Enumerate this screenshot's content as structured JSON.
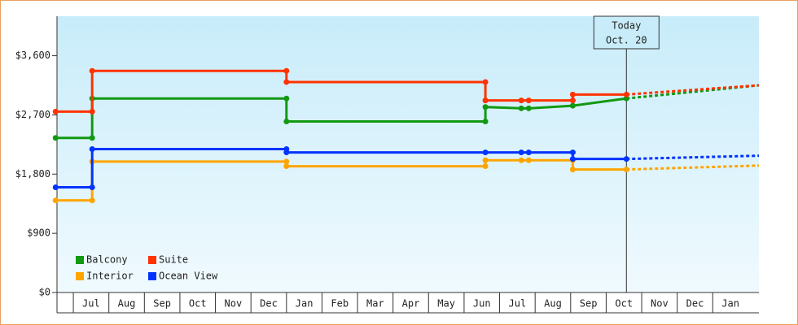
{
  "chart_data": {
    "type": "line",
    "xlim": [
      0.54,
      20.3
    ],
    "ylim": [
      0,
      4200
    ],
    "xticks": [
      {
        "value": 1.5,
        "label": "Jul"
      },
      {
        "value": 2.5,
        "label": "Aug"
      },
      {
        "value": 3.5,
        "label": "Sep"
      },
      {
        "value": 4.5,
        "label": "Oct"
      },
      {
        "value": 5.5,
        "label": "Nov"
      },
      {
        "value": 6.5,
        "label": "Dec"
      },
      {
        "value": 7.5,
        "label": "Jan"
      },
      {
        "value": 8.5,
        "label": "Feb"
      },
      {
        "value": 9.5,
        "label": "Mar"
      },
      {
        "value": 10.5,
        "label": "Apr"
      },
      {
        "value": 11.5,
        "label": "May"
      },
      {
        "value": 12.5,
        "label": "Jun"
      },
      {
        "value": 13.5,
        "label": "Jul"
      },
      {
        "value": 14.5,
        "label": "Aug"
      },
      {
        "value": 15.5,
        "label": "Sep"
      },
      {
        "value": 16.5,
        "label": "Oct"
      },
      {
        "value": 17.5,
        "label": "Nov"
      },
      {
        "value": 18.5,
        "label": "Dec"
      },
      {
        "value": 19.5,
        "label": "Jan"
      }
    ],
    "yticks": [
      {
        "value": 0,
        "label": "$0"
      },
      {
        "value": 900,
        "label": "$900"
      },
      {
        "value": 1800,
        "label": "$1,800"
      },
      {
        "value": 2700,
        "label": "$2,700"
      },
      {
        "value": 3600,
        "label": "$3,600"
      }
    ],
    "today": {
      "x": 16.57,
      "label": [
        "Today",
        "Oct. 20"
      ]
    },
    "series": [
      {
        "name": "Balcony",
        "color": "#119911",
        "x": [
          0.5,
          1.53,
          1.53,
          7.0,
          7.0,
          12.6,
          12.6,
          13.61,
          13.82,
          15.06,
          16.57
        ],
        "values": [
          2350,
          2350,
          2950,
          2950,
          2600,
          2600,
          2820,
          2800,
          2800,
          2840,
          2950
        ],
        "forecast_x": [
          16.57,
          20.3
        ],
        "forecast_values": [
          2950,
          3150
        ]
      },
      {
        "name": "Suite",
        "color": "#ff3300",
        "x": [
          0.5,
          1.53,
          1.53,
          7.0,
          7.0,
          12.6,
          12.6,
          13.61,
          13.82,
          15.06,
          15.06,
          16.57
        ],
        "values": [
          2750,
          2750,
          3370,
          3370,
          3200,
          3200,
          2920,
          2920,
          2920,
          2920,
          3010,
          3010
        ],
        "forecast_x": [
          16.57,
          20.3
        ],
        "forecast_values": [
          3010,
          3150
        ]
      },
      {
        "name": "Interior",
        "color": "#ffa500",
        "x": [
          0.5,
          1.53,
          1.53,
          7.0,
          7.0,
          12.6,
          12.6,
          13.61,
          13.82,
          15.06,
          15.06,
          16.57
        ],
        "values": [
          1400,
          1400,
          1990,
          1990,
          1920,
          1920,
          2010,
          2010,
          2010,
          2010,
          1870,
          1870
        ],
        "forecast_x": [
          16.57,
          20.3
        ],
        "forecast_values": [
          1870,
          1930
        ]
      },
      {
        "name": "Ocean View",
        "color": "#0033ff",
        "x": [
          0.5,
          1.53,
          1.53,
          7.0,
          7.0,
          12.6,
          13.61,
          13.82,
          15.06,
          15.06,
          16.57
        ],
        "values": [
          1600,
          1600,
          2180,
          2180,
          2130,
          2130,
          2130,
          2130,
          2130,
          2030,
          2030
        ],
        "forecast_x": [
          16.57,
          20.3
        ],
        "forecast_values": [
          2030,
          2080
        ]
      }
    ]
  }
}
